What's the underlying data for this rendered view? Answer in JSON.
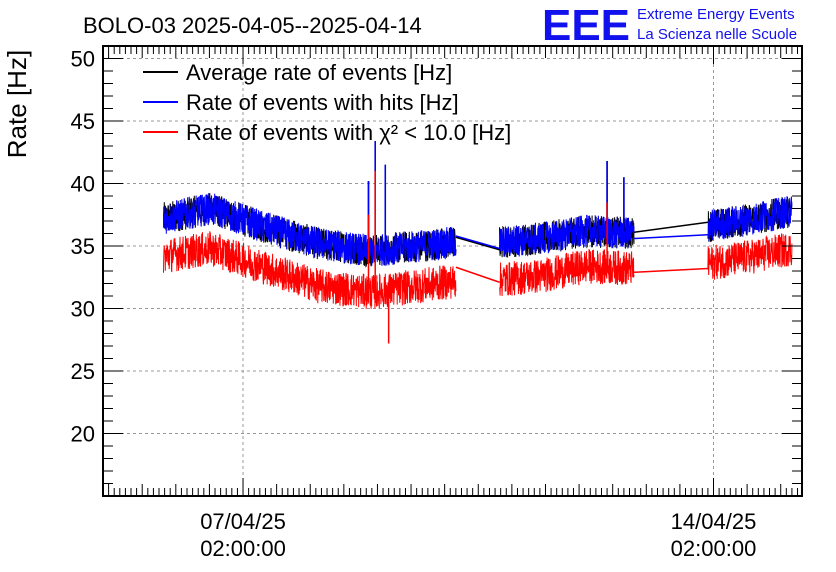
{
  "header": {
    "title": "BOLO-03 2025-04-05--2025-04-14",
    "logo_text": "EEE",
    "logo_line1": "Extreme Energy Events",
    "logo_line2": "La Scienza nelle Scuole"
  },
  "chart_data": {
    "type": "line",
    "title": "BOLO-03 2025-04-05--2025-04-14",
    "xlabel": "",
    "ylabel": "Rate [Hz]",
    "ylim": [
      15,
      51
    ],
    "yticks": [
      20,
      25,
      30,
      35,
      40,
      45,
      50
    ],
    "grid": true,
    "legend_position": "top-left",
    "x_unit": "days since 2025-04-05 00:00",
    "xlim": [
      0.0,
      10.4
    ],
    "xticks": [
      {
        "x": 2.0833,
        "date": "07/04/25",
        "time": "02:00:00"
      },
      {
        "x": 9.0833,
        "date": "14/04/25",
        "time": "02:00:00"
      }
    ],
    "data_ranges": [
      [
        0.9,
        5.25
      ],
      [
        5.9,
        7.9
      ],
      [
        9.0,
        10.25
      ]
    ],
    "series": [
      {
        "name": "Average rate of events [Hz]",
        "legend_text": "Average rate of events [Hz]",
        "color": "#000000",
        "baseline": [
          [
            0.9,
            37.2
          ],
          [
            1.6,
            38.0
          ],
          [
            2.4,
            36.5
          ],
          [
            3.2,
            35.2
          ],
          [
            4.0,
            34.6
          ],
          [
            5.25,
            35.3
          ],
          [
            5.9,
            35.3
          ],
          [
            6.5,
            35.6
          ],
          [
            7.2,
            36.2
          ],
          [
            7.9,
            36.0
          ],
          [
            9.0,
            36.6
          ],
          [
            9.7,
            37.2
          ],
          [
            10.25,
            37.8
          ]
        ],
        "amplitude": 1.3,
        "spikes": [
          [
            4.05,
            43.4
          ],
          [
            4.2,
            41.5
          ],
          [
            3.95,
            40.2
          ],
          [
            7.5,
            41.8
          ],
          [
            7.75,
            40.5
          ]
        ],
        "gaps": [
          [
            [
              5.25,
              35.7
            ],
            [
              5.9,
              34.7
            ]
          ],
          [
            [
              7.9,
              36.1
            ],
            [
              9.0,
              36.9
            ]
          ]
        ]
      },
      {
        "name": "Rate of events with hits [Hz]",
        "legend_text": "Rate of events with hits [Hz]",
        "color": "#0000ff",
        "baseline": [
          [
            0.9,
            37.2
          ],
          [
            1.6,
            38.0
          ],
          [
            2.4,
            36.5
          ],
          [
            3.2,
            35.2
          ],
          [
            4.0,
            34.6
          ],
          [
            5.25,
            35.3
          ],
          [
            5.9,
            35.3
          ],
          [
            6.5,
            35.6
          ],
          [
            7.2,
            36.2
          ],
          [
            7.9,
            36.0
          ],
          [
            9.0,
            36.6
          ],
          [
            9.7,
            37.2
          ],
          [
            10.25,
            37.8
          ]
        ],
        "amplitude": 1.3,
        "spikes": [
          [
            4.05,
            43.4
          ],
          [
            4.2,
            41.5
          ],
          [
            3.95,
            40.2
          ],
          [
            7.5,
            41.8
          ],
          [
            7.75,
            40.5
          ]
        ],
        "gaps": [
          [
            [
              5.25,
              35.8
            ],
            [
              5.9,
              34.8
            ]
          ],
          [
            [
              7.9,
              35.6
            ],
            [
              9.0,
              35.9
            ]
          ]
        ]
      },
      {
        "name": "Rate of events with chi2 < 10.0 [Hz]",
        "legend_text": "Rate of events with χ² < 10.0 [Hz]",
        "color": "#ff0000",
        "baseline": [
          [
            0.9,
            34.2
          ],
          [
            1.6,
            34.8
          ],
          [
            2.4,
            33.3
          ],
          [
            3.2,
            31.8
          ],
          [
            4.0,
            31.3
          ],
          [
            5.25,
            32.2
          ],
          [
            5.9,
            32.3
          ],
          [
            6.5,
            32.6
          ],
          [
            7.2,
            33.4
          ],
          [
            7.9,
            33.2
          ],
          [
            9.0,
            33.6
          ],
          [
            9.7,
            34.2
          ],
          [
            10.25,
            34.8
          ]
        ],
        "amplitude": 1.4,
        "spikes": [
          [
            4.05,
            41.0
          ],
          [
            3.95,
            37.5
          ],
          [
            4.25,
            27.2
          ],
          [
            7.5,
            38.5
          ]
        ],
        "gaps": [
          [
            [
              5.25,
              33.3
            ],
            [
              5.9,
              32.1
            ]
          ],
          [
            [
              7.9,
              32.9
            ],
            [
              9.0,
              33.2
            ]
          ]
        ]
      }
    ]
  }
}
